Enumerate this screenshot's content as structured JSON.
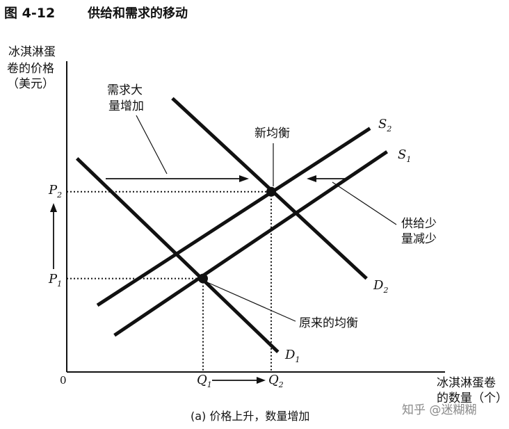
{
  "figure": {
    "number": "图 4-12",
    "title": "供给和需求的移动",
    "caption": "(a) 价格上升，数量增加",
    "watermark": "知乎 @迷糊糊"
  },
  "axes": {
    "y_label_lines": [
      "冰淇淋蛋",
      "卷的价格",
      "（美元）"
    ],
    "x_label_lines": [
      "冰淇淋蛋卷",
      "的数量（个）"
    ],
    "origin": "0"
  },
  "annotations": {
    "demand_increase": [
      "需求大",
      "量增加"
    ],
    "supply_decrease": [
      "供给少",
      "量减少"
    ],
    "new_equilibrium": "新均衡",
    "old_equilibrium": "原来的均衡"
  },
  "colors": {
    "ink": "#111111",
    "background": "#ffffff",
    "watermark": "#8a8a8a"
  },
  "chart_data": {
    "type": "line",
    "title": "供给和需求的移动",
    "xlabel": "冰淇淋蛋卷的数量（个）",
    "ylabel": "冰淇淋蛋卷的价格（美元）",
    "x_ticks": [
      {
        "base": "Q",
        "sub": "1",
        "value": 2.0
      },
      {
        "base": "Q",
        "sub": "2",
        "value": 3.0
      }
    ],
    "y_ticks": [
      {
        "base": "P",
        "sub": "1",
        "value": 1.4
      },
      {
        "base": "P",
        "sub": "2",
        "value": 2.7
      }
    ],
    "xlim": [
      0,
      5.4
    ],
    "ylim": [
      0,
      4.7
    ],
    "series": [
      {
        "name": "D",
        "sub": "1",
        "points": [
          [
            0.15,
            3.2
          ],
          [
            3.1,
            0.3
          ]
        ]
      },
      {
        "name": "D",
        "sub": "2",
        "points": [
          [
            1.55,
            4.1
          ],
          [
            4.4,
            1.4
          ]
        ]
      },
      {
        "name": "S",
        "sub": "1",
        "points": [
          [
            0.7,
            0.55
          ],
          [
            4.7,
            3.3
          ]
        ]
      },
      {
        "name": "S",
        "sub": "2",
        "points": [
          [
            0.45,
            1.0
          ],
          [
            4.45,
            3.65
          ]
        ]
      }
    ],
    "equilibria": [
      {
        "label": "原来的均衡",
        "x": 2.0,
        "y": 1.4
      },
      {
        "label": "新均衡",
        "x": 3.0,
        "y": 2.7
      }
    ],
    "grid": false
  }
}
